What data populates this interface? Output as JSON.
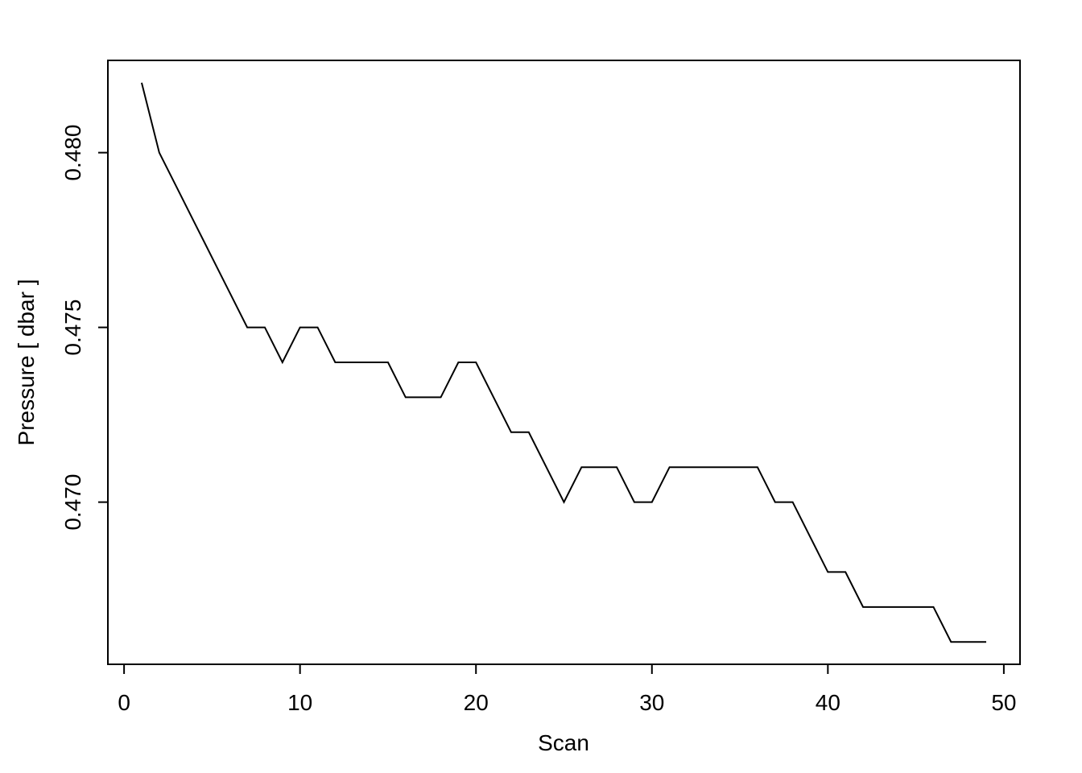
{
  "chart_data": {
    "type": "line",
    "x_label": "Scan",
    "y_label": "Pressure [ dbar ]",
    "x": [
      1,
      2,
      3,
      4,
      5,
      6,
      7,
      8,
      9,
      10,
      11,
      12,
      13,
      14,
      15,
      16,
      17,
      18,
      19,
      20,
      21,
      22,
      23,
      24,
      25,
      26,
      27,
      28,
      29,
      30,
      31,
      32,
      33,
      34,
      35,
      36,
      37,
      38,
      39,
      40,
      41,
      42,
      43,
      44,
      45,
      46,
      47,
      48,
      49
    ],
    "series": [
      {
        "color": "#000000",
        "values": [
          0.482,
          0.48,
          0.479,
          0.478,
          0.477,
          0.476,
          0.475,
          0.475,
          0.474,
          0.475,
          0.475,
          0.474,
          0.474,
          0.474,
          0.474,
          0.473,
          0.473,
          0.473,
          0.474,
          0.474,
          0.473,
          0.472,
          0.472,
          0.471,
          0.47,
          0.471,
          0.471,
          0.471,
          0.47,
          0.47,
          0.471,
          0.471,
          0.471,
          0.471,
          0.471,
          0.471,
          0.47,
          0.47,
          0.469,
          0.468,
          0.468,
          0.467,
          0.467,
          0.467,
          0.467,
          0.467,
          0.466,
          0.466,
          0.466
        ]
      }
    ],
    "xlim": [
      -0.92,
      50.92
    ],
    "ylim": [
      0.46536,
      0.48264
    ],
    "xticks": [
      0,
      10,
      20,
      30,
      40,
      50
    ],
    "yticks": [
      {
        "value": 0.47,
        "label": "0.470"
      },
      {
        "value": 0.475,
        "label": "0.475"
      },
      {
        "value": 0.48,
        "label": "0.480"
      }
    ]
  }
}
